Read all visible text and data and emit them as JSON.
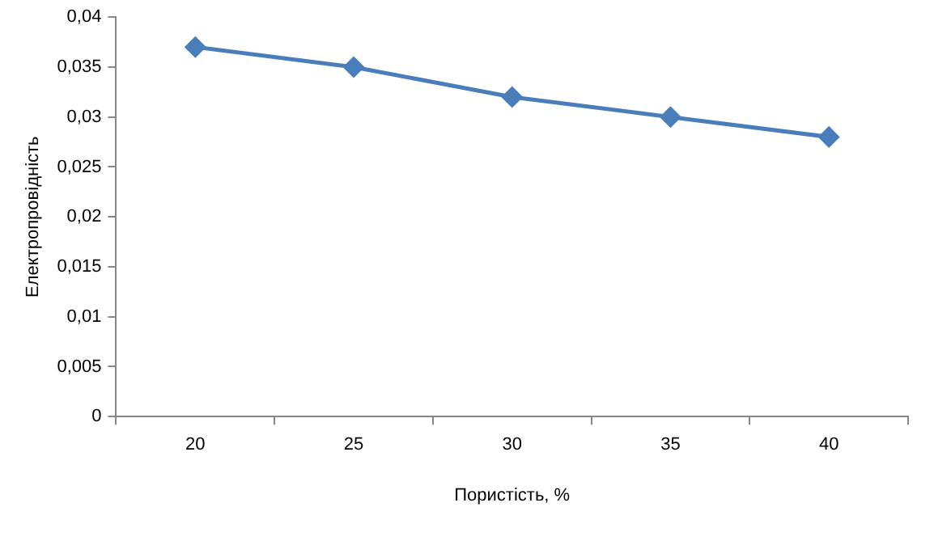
{
  "chart_data": {
    "type": "line",
    "xlabel": "Пористість, %",
    "ylabel": "Електропровідність",
    "categories": [
      "20",
      "25",
      "30",
      "35",
      "40"
    ],
    "series": [
      {
        "color": "#4a7ebb",
        "values": [
          0.037,
          0.035,
          0.032,
          0.03,
          0.028
        ]
      }
    ],
    "ylim": [
      0,
      0.04
    ],
    "yticks": [
      0,
      {
        "value": 0.005,
        "label": "0,005"
      },
      {
        "value": 0.01,
        "label": "0,01"
      },
      {
        "value": 0.015,
        "label": "0,015"
      },
      {
        "value": 0.02,
        "label": "0,02"
      },
      {
        "value": 0.025,
        "label": "0,025"
      },
      {
        "value": 0.03,
        "label": "0,03"
      },
      {
        "value": 0.035,
        "label": "0,035"
      },
      {
        "value": 0.04,
        "label": "0,04"
      }
    ],
    "marker": "diamond"
  }
}
